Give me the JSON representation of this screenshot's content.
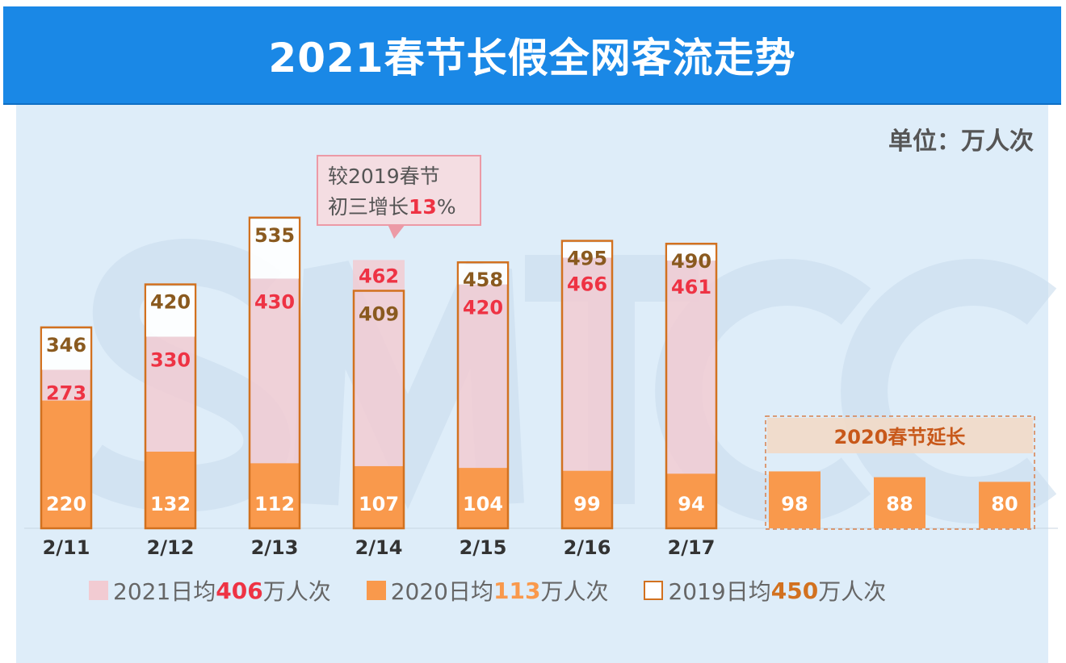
{
  "header": {
    "title": "2021春节长假全网客流走势"
  },
  "unit": "单位：万人次",
  "watermark": "SMTCC",
  "callout": {
    "line1": "较2019春节",
    "line2_prefix": "初三增长",
    "line2_value": "13",
    "line2_suffix": "%"
  },
  "legend": [
    {
      "prefix": "2021日均",
      "value": "406",
      "suffix": "万人次",
      "color": "#f2cbd2",
      "value_color": "#ee3344"
    },
    {
      "prefix": "2020日均",
      "value": "113",
      "suffix": "万人次",
      "color": "#f9994c",
      "value_color": "#f9994c"
    },
    {
      "prefix": "2019日均",
      "value": "450",
      "suffix": "万人次",
      "color": "#d2711f",
      "value_color": "#d2711f"
    }
  ],
  "chart_data": {
    "type": "bar",
    "categories": [
      "2/11",
      "2/12",
      "2/13",
      "2/14",
      "2/15",
      "2/16",
      "2/17"
    ],
    "series": [
      {
        "name": "2021",
        "values": [
          273,
          330,
          430,
          462,
          420,
          466,
          461
        ],
        "color": "#f2cbd2"
      },
      {
        "name": "2020",
        "values": [
          220,
          132,
          112,
          107,
          104,
          99,
          94
        ],
        "color": "#f9994c"
      },
      {
        "name": "2019",
        "values": [
          346,
          420,
          535,
          409,
          458,
          495,
          490
        ],
        "color": "#d2711f"
      }
    ],
    "extension": {
      "label": "2020春节延长",
      "values": [
        98,
        88,
        80
      ],
      "color": "#f9994c"
    },
    "ylim": [
      0,
      560
    ],
    "grid": false
  }
}
